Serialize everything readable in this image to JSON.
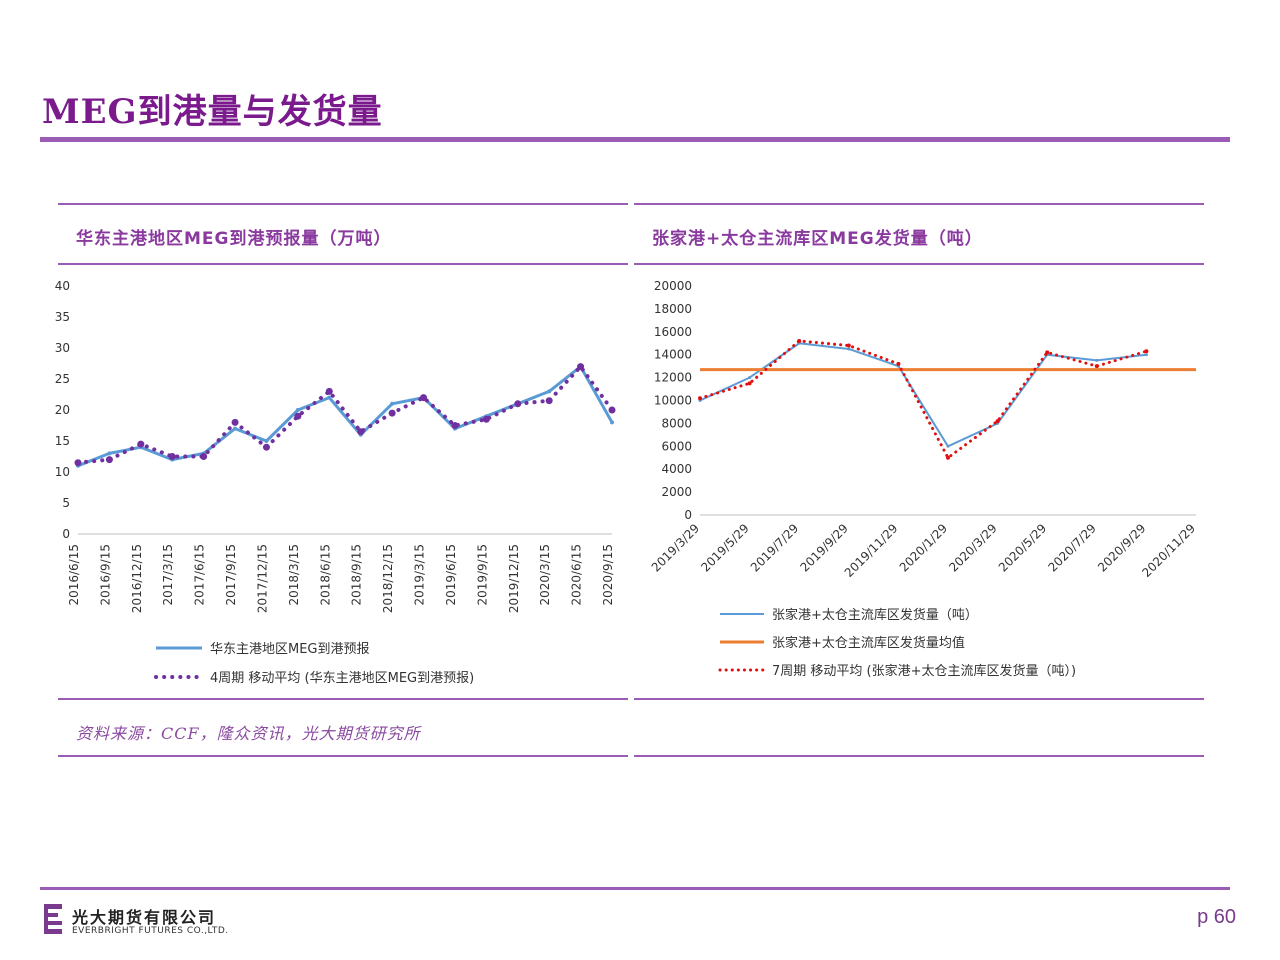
{
  "page": {
    "title": "MEG到港量与发货量",
    "source": "资料来源：CCF，隆众资讯，光大期货研究所",
    "logo_cn": "光大期货有限公司",
    "logo_en": "EVERBRIGHT FUTURES CO.,LTD.",
    "page_number": "p 60",
    "colors": {
      "accent": "#9a5cb4",
      "title": "#7a1a8c"
    }
  },
  "chart_data": [
    {
      "type": "line",
      "title": "华东主港地区MEG到港预报量（万吨）",
      "ylim": [
        0,
        40
      ],
      "yticks": [
        0,
        5,
        10,
        15,
        20,
        25,
        30,
        35,
        40
      ],
      "xticks": [
        "2016/6/15",
        "2016/9/15",
        "2016/12/15",
        "2017/3/15",
        "2017/6/15",
        "2017/9/15",
        "2017/12/15",
        "2018/3/15",
        "2018/6/15",
        "2018/9/15",
        "2018/12/15",
        "2019/3/15",
        "2019/6/15",
        "2019/9/15",
        "2019/12/15",
        "2020/3/15",
        "2020/6/15",
        "2020/9/15"
      ],
      "legend": [
        "华东主港地区MEG到港预报",
        "4周期 移动平均 (华东主港地区MEG到港预报)"
      ],
      "series": [
        {
          "name": "华东主港地区MEG到港预报",
          "color": "#5b9bd5",
          "x": [
            "2016/6/15",
            "2016/9/15",
            "2016/12/15",
            "2017/3/15",
            "2017/6/15",
            "2017/9/15",
            "2017/12/15",
            "2018/3/15",
            "2018/6/15",
            "2018/9/15",
            "2018/12/15",
            "2019/3/15",
            "2019/6/15",
            "2019/9/15",
            "2019/12/15",
            "2020/3/15",
            "2020/6/15",
            "2020/9/15"
          ],
          "values": [
            11,
            13,
            14,
            12,
            13,
            17,
            15,
            20,
            22,
            16,
            21,
            22,
            17,
            19,
            21,
            23,
            27,
            18
          ]
        },
        {
          "name": "4周期 移动平均 (华东主港地区MEG到港预报)",
          "color": "#7030a0",
          "x": [
            "2016/6/15",
            "2016/9/15",
            "2016/12/15",
            "2017/3/15",
            "2017/6/15",
            "2017/9/15",
            "2017/12/15",
            "2018/3/15",
            "2018/6/15",
            "2018/9/15",
            "2018/12/15",
            "2019/3/15",
            "2019/6/15",
            "2019/9/15",
            "2019/12/15",
            "2020/3/15",
            "2020/6/15",
            "2020/9/15"
          ],
          "values": [
            11.5,
            12,
            14.5,
            12.5,
            12.5,
            18,
            14,
            19,
            23,
            16.5,
            19.5,
            22,
            17.5,
            18.5,
            21,
            21.5,
            27,
            20
          ]
        }
      ]
    },
    {
      "type": "line",
      "title": "张家港+太仓主流库区MEG发货量（吨）",
      "ylim": [
        0,
        20000
      ],
      "yticks": [
        0,
        2000,
        4000,
        6000,
        8000,
        10000,
        12000,
        14000,
        16000,
        18000,
        20000
      ],
      "xticks": [
        "2019/3/29",
        "2019/5/29",
        "2019/7/29",
        "2019/9/29",
        "2019/11/29",
        "2020/1/29",
        "2020/3/29",
        "2020/5/29",
        "2020/7/29",
        "2020/9/29",
        "2020/11/29"
      ],
      "legend": [
        "张家港+太仓主流库区发货量（吨）",
        "张家港+太仓主流库区发货量均值",
        "7周期 移动平均 (张家港+太仓主流库区发货量（吨）)"
      ],
      "series": [
        {
          "name": "张家港+太仓主流库区发货量（吨）",
          "color": "#5b9bd5",
          "x": [
            "2019/3/29",
            "2019/5/29",
            "2019/7/29",
            "2019/9/29",
            "2019/11/29",
            "2020/1/29",
            "2020/3/29",
            "2020/5/29",
            "2020/7/29",
            "2020/9/29"
          ],
          "values": [
            10000,
            12000,
            15000,
            14500,
            13000,
            6000,
            8000,
            14000,
            13500,
            14000
          ]
        },
        {
          "name": "张家港+太仓主流库区发货量均值",
          "color": "#ed7d31",
          "x": [
            "2019/3/29",
            "2020/11/29"
          ],
          "values": [
            12700,
            12700
          ]
        },
        {
          "name": "7周期 移动平均 (张家港+太仓主流库区发货量（吨）)",
          "color": "#e01010",
          "x": [
            "2019/3/29",
            "2019/5/29",
            "2019/7/29",
            "2019/9/29",
            "2019/11/29",
            "2020/1/29",
            "2020/3/29",
            "2020/5/29",
            "2020/7/29",
            "2020/9/29"
          ],
          "values": [
            10200,
            11500,
            15200,
            14800,
            13200,
            5000,
            8200,
            14200,
            13000,
            14300
          ]
        }
      ]
    }
  ]
}
